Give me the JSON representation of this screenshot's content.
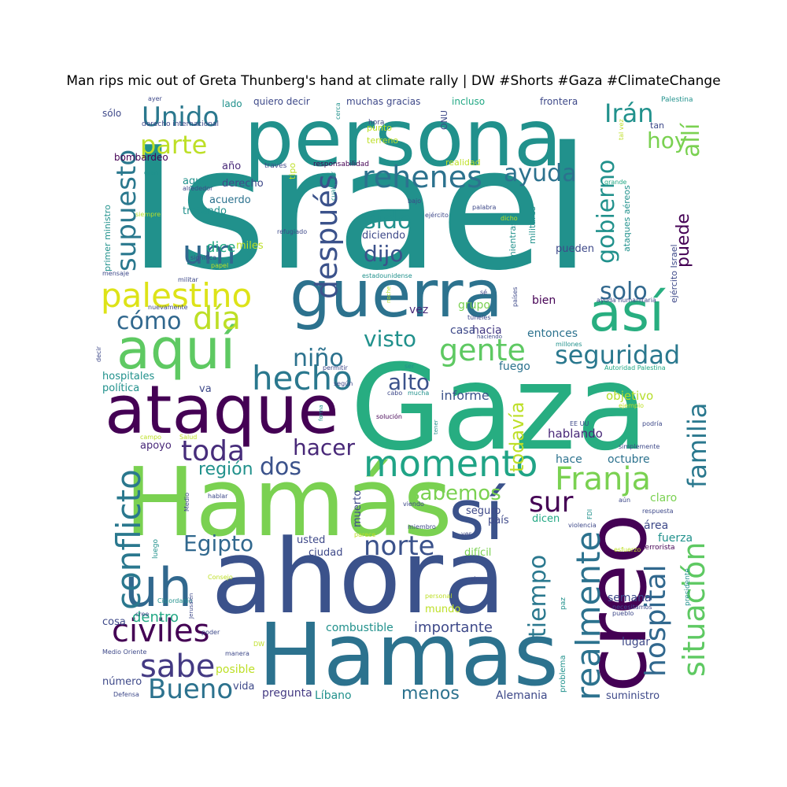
{
  "title": "Man rips mic out of Greta Thunberg's hand at climate rally | DW #Shorts #Gaza #ClimateChange",
  "colors": {
    "background": "#ffffff",
    "title": "#000000",
    "palette": "viridis"
  },
  "words": [
    {
      "text": "Israel",
      "color": "#21918c"
    },
    {
      "text": "Gaza",
      "color": "#27ad81"
    },
    {
      "text": "ahora",
      "color": "#3b528b"
    },
    {
      "text": "Hamás",
      "color": "#7ad151"
    },
    {
      "text": "Hamas",
      "color": "#2c728e"
    },
    {
      "text": "persona",
      "color": "#21918c"
    },
    {
      "text": "guerra",
      "color": "#2c728e"
    },
    {
      "text": "creo",
      "color": "#440154"
    },
    {
      "text": "ataque",
      "color": "#440154"
    },
    {
      "text": "sí",
      "color": "#3b528b"
    },
    {
      "text": "aquí",
      "color": "#5ec962"
    },
    {
      "text": "uh",
      "color": "#31688e"
    },
    {
      "text": "así",
      "color": "#28ae80"
    },
    {
      "text": "momento",
      "color": "#20a486"
    },
    {
      "text": "palestino",
      "color": "#dde318"
    },
    {
      "text": "conflicto",
      "color": "#2a788e"
    },
    {
      "text": "situación",
      "color": "#5ec962"
    },
    {
      "text": "realmente",
      "color": "#2c728e"
    },
    {
      "text": "Franja",
      "color": "#7ad151"
    },
    {
      "text": "hecho",
      "color": "#2a788e"
    },
    {
      "text": "civiles",
      "color": "#440154"
    },
    {
      "text": "hospital",
      "color": "#31688e"
    },
    {
      "text": "familia",
      "color": "#2a788e"
    },
    {
      "text": "seguridad",
      "color": "#2a788e"
    },
    {
      "text": "rehenes",
      "color": "#2c728e"
    },
    {
      "text": "después",
      "color": "#3b528b"
    },
    {
      "text": "gente",
      "color": "#5ec962"
    },
    {
      "text": "supuesto",
      "color": "#2a788e"
    },
    {
      "text": "sabe",
      "color": "#443a83"
    },
    {
      "text": "toda",
      "color": "#472d7b"
    },
    {
      "text": "gobierno",
      "color": "#21918c"
    },
    {
      "text": "Unido",
      "color": "#2a788e"
    },
    {
      "text": "um",
      "color": "#31688e"
    },
    {
      "text": "día",
      "color": "#bddf26"
    },
    {
      "text": "cómo",
      "color": "#31688e"
    },
    {
      "text": "Bueno",
      "color": "#2c728e"
    },
    {
      "text": "Egipto",
      "color": "#31688e"
    },
    {
      "text": "norte",
      "color": "#3b528b"
    },
    {
      "text": "tiempo",
      "color": "#2a788e"
    },
    {
      "text": "sur",
      "color": "#440154"
    },
    {
      "text": "todavía",
      "color": "#bddf26"
    },
    {
      "text": "ayuda",
      "color": "#2c728e"
    },
    {
      "text": "hacer",
      "color": "#482878"
    },
    {
      "text": "niño",
      "color": "#2c728e"
    },
    {
      "text": "parte",
      "color": "#bddf26"
    },
    {
      "text": "Irán",
      "color": "#21918c"
    },
    {
      "text": "allí",
      "color": "#7ad151"
    },
    {
      "text": "sido",
      "color": "#21918c"
    },
    {
      "text": "dos",
      "color": "#3b528b"
    },
    {
      "text": "visto",
      "color": "#21918c"
    },
    {
      "text": "sabemos",
      "color": "#7ad151"
    },
    {
      "text": "solo",
      "color": "#31688e"
    },
    {
      "text": "dijo",
      "color": "#3b528b"
    },
    {
      "text": "alto",
      "color": "#3b528b"
    },
    {
      "text": "hoy",
      "color": "#7ad151"
    },
    {
      "text": "puede",
      "color": "#440154"
    },
    {
      "text": "región",
      "color": "#21918c"
    },
    {
      "text": "dentro",
      "color": "#22a884"
    },
    {
      "text": "importante",
      "color": "#3e4989"
    },
    {
      "text": "menos",
      "color": "#2c728e"
    },
    {
      "text": "informe",
      "color": "#3b528b"
    },
    {
      "text": "dice",
      "color": "#22a884"
    },
    {
      "text": "posible",
      "color": "#bddf26"
    },
    {
      "text": "combustible",
      "color": "#21918c"
    },
    {
      "text": "hablando",
      "color": "#482878"
    },
    {
      "text": "objetivo",
      "color": "#b5de2b"
    },
    {
      "text": "octubre",
      "color": "#2c728e"
    },
    {
      "text": "hace",
      "color": "#2c728e"
    },
    {
      "text": "fuerza",
      "color": "#21918c"
    },
    {
      "text": "área",
      "color": "#3e4989"
    },
    {
      "text": "claro",
      "color": "#7ad151"
    },
    {
      "text": "fuego",
      "color": "#2c728e"
    },
    {
      "text": "entonces",
      "color": "#2c728e"
    },
    {
      "text": "hacia",
      "color": "#443a83"
    },
    {
      "text": "casa",
      "color": "#3e4989"
    },
    {
      "text": "vez",
      "color": "#482878"
    },
    {
      "text": "bien",
      "color": "#440154"
    },
    {
      "text": "grupo",
      "color": "#7ad151"
    },
    {
      "text": "semana",
      "color": "#3e4989"
    },
    {
      "text": "lugar",
      "color": "#3e4989"
    },
    {
      "text": "suministro",
      "color": "#3e4989"
    },
    {
      "text": "Alemania",
      "color": "#3e4989"
    },
    {
      "text": "Líbano",
      "color": "#21918c"
    },
    {
      "text": "pregunta",
      "color": "#443a83"
    },
    {
      "text": "vida",
      "color": "#3e4989"
    },
    {
      "text": "número",
      "color": "#3e4989"
    },
    {
      "text": "cosa",
      "color": "#3e4989"
    },
    {
      "text": "apoyo",
      "color": "#482878"
    },
    {
      "text": "va",
      "color": "#3e4989"
    },
    {
      "text": "política",
      "color": "#21918c"
    },
    {
      "text": "hospitales",
      "color": "#21918c"
    },
    {
      "text": "mundo",
      "color": "#bddf26"
    },
    {
      "text": "difícil",
      "color": "#7ad151"
    },
    {
      "text": "ciudad",
      "color": "#3e4989"
    },
    {
      "text": "usted",
      "color": "#3e4989"
    },
    {
      "text": "país",
      "color": "#3e4989"
    },
    {
      "text": "dicen",
      "color": "#22a884"
    },
    {
      "text": "seguro",
      "color": "#3e4989"
    },
    {
      "text": "muerto",
      "color": "#3e4989"
    },
    {
      "text": "pueden",
      "color": "#3e4989"
    },
    {
      "text": "diciendo",
      "color": "#3e4989"
    },
    {
      "text": "miles",
      "color": "#bddf26"
    },
    {
      "text": "tratando",
      "color": "#21918c"
    },
    {
      "text": "acuerdo",
      "color": "#2c728e"
    },
    {
      "text": "agua",
      "color": "#21918c"
    },
    {
      "text": "derecho",
      "color": "#3e4989"
    },
    {
      "text": "año",
      "color": "#482878"
    },
    {
      "text": "bombardeo",
      "color": "#440154"
    },
    {
      "text": "lado",
      "color": "#21918c"
    },
    {
      "text": "quiero decir",
      "color": "#3e4989"
    },
    {
      "text": "muchas gracias",
      "color": "#3e4989"
    },
    {
      "text": "incluso",
      "color": "#22a884"
    },
    {
      "text": "frontera",
      "color": "#3e4989"
    },
    {
      "text": "sólo",
      "color": "#3e4989"
    },
    {
      "text": "punto",
      "color": "#bddf26"
    },
    {
      "text": "terreno",
      "color": "#bddf26"
    },
    {
      "text": "realidad",
      "color": "#bddf26"
    },
    {
      "text": "mientras",
      "color": "#21918c"
    },
    {
      "text": "militares",
      "color": "#21918c"
    },
    {
      "text": "ataques aéreos",
      "color": "#21918c"
    },
    {
      "text": "ejército Israel",
      "color": "#3e4989"
    },
    {
      "text": "primer ministro",
      "color": "#21918c"
    },
    {
      "text": "tipo",
      "color": "#bddf26"
    },
    {
      "text": "ONU",
      "color": "#3e4989"
    },
    {
      "text": "tan",
      "color": "#3e4989"
    },
    {
      "text": "Palestina",
      "color": "#21918c"
    },
    {
      "text": "ayer",
      "color": "#3e4989"
    },
    {
      "text": "derecho internacional",
      "color": "#3e4989"
    },
    {
      "text": "hora",
      "color": "#3e4989"
    },
    {
      "text": "cerca",
      "color": "#21918c"
    },
    {
      "text": "tal vez",
      "color": "#bddf26"
    },
    {
      "text": "responsabilidad",
      "color": "#440154"
    },
    {
      "text": "través",
      "color": "#3e4989"
    },
    {
      "text": "gran",
      "color": "#21918c"
    },
    {
      "text": "alrededor",
      "color": "#3e4989"
    },
    {
      "text": "grande",
      "color": "#22a884"
    },
    {
      "text": "cualquier",
      "color": "#21918c"
    },
    {
      "text": "bajo",
      "color": "#3e4989"
    },
    {
      "text": "palabra",
      "color": "#3e4989"
    },
    {
      "text": "dicho",
      "color": "#bddf26"
    },
    {
      "text": "ejército",
      "color": "#3e4989"
    },
    {
      "text": "refugiado",
      "color": "#3e4989"
    },
    {
      "text": "siempre",
      "color": "#b5de2b"
    },
    {
      "text": "significa",
      "color": "#3e4989"
    },
    {
      "text": "papel",
      "color": "#bddf26"
    },
    {
      "text": "mensaje",
      "color": "#3e4989"
    },
    {
      "text": "militar",
      "color": "#3e4989"
    },
    {
      "text": "estadounidense",
      "color": "#21918c"
    },
    {
      "text": "nuevamente",
      "color": "#3e4989"
    },
    {
      "text": "noche",
      "color": "#b5de2b"
    },
    {
      "text": "sé",
      "color": "#3e4989"
    },
    {
      "text": "túneles",
      "color": "#3e4989"
    },
    {
      "text": "países",
      "color": "#3e4989"
    },
    {
      "text": "haciendo",
      "color": "#3e4989"
    },
    {
      "text": "ayuda humanitaria",
      "color": "#3e4989"
    },
    {
      "text": "millones",
      "color": "#21918c"
    },
    {
      "text": "permitir",
      "color": "#3e4989"
    },
    {
      "text": "ser",
      "color": "#21918c"
    },
    {
      "text": "Autoridad Palestina",
      "color": "#22a884"
    },
    {
      "text": "decir",
      "color": "#3e4989"
    },
    {
      "text": "según",
      "color": "#3e4989"
    },
    {
      "text": "cabo",
      "color": "#3e4989"
    },
    {
      "text": "mucha",
      "color": "#21918c"
    },
    {
      "text": "forma",
      "color": "#21918c"
    },
    {
      "text": "solución",
      "color": "#440154"
    },
    {
      "text": "ejemplo",
      "color": "#bddf26"
    },
    {
      "text": "tener",
      "color": "#21918c"
    },
    {
      "text": "EE UU",
      "color": "#3e4989"
    },
    {
      "text": "podría",
      "color": "#3e4989"
    },
    {
      "text": "campo",
      "color": "#bddf26"
    },
    {
      "text": "Salud",
      "color": "#bddf26"
    },
    {
      "text": "simplemente",
      "color": "#3e4989"
    },
    {
      "text": "FDI",
      "color": "#21918c"
    },
    {
      "text": "aún",
      "color": "#3e4989"
    },
    {
      "text": "respuesta",
      "color": "#3e4989"
    },
    {
      "text": "Medio",
      "color": "#3e4989"
    },
    {
      "text": "hablar",
      "color": "#3e4989"
    },
    {
      "text": "viendo",
      "color": "#3e4989"
    },
    {
      "text": "violencia",
      "color": "#3e4989"
    },
    {
      "text": "miembro",
      "color": "#3e4989"
    },
    {
      "text": "parece",
      "color": "#bddf26"
    },
    {
      "text": "ver",
      "color": "#3e4989"
    },
    {
      "text": "esfuerzo",
      "color": "#bddf26"
    },
    {
      "text": "terrorista",
      "color": "#440154"
    },
    {
      "text": "luego",
      "color": "#21918c"
    },
    {
      "text": "Consejo",
      "color": "#bddf26"
    },
    {
      "text": "Cisjordania",
      "color": "#21918c"
    },
    {
      "text": "sino",
      "color": "#3e4989"
    },
    {
      "text": "presidente",
      "color": "#21918c"
    },
    {
      "text": "Jerusalén",
      "color": "#3e4989"
    },
    {
      "text": "personal",
      "color": "#bddf26"
    },
    {
      "text": "necesitamos",
      "color": "#3e4989"
    },
    {
      "text": "pueblo",
      "color": "#3e4989"
    },
    {
      "text": "paz",
      "color": "#21918c"
    },
    {
      "text": "cree",
      "color": "#3e4989"
    },
    {
      "text": "poder",
      "color": "#3e4989"
    },
    {
      "text": "DW",
      "color": "#bddf26"
    },
    {
      "text": "Medio Oriente",
      "color": "#3e4989"
    },
    {
      "text": "manera",
      "color": "#3e4989"
    },
    {
      "text": "problema",
      "color": "#21918c"
    },
    {
      "text": "Defensa",
      "color": "#3e4989"
    }
  ]
}
